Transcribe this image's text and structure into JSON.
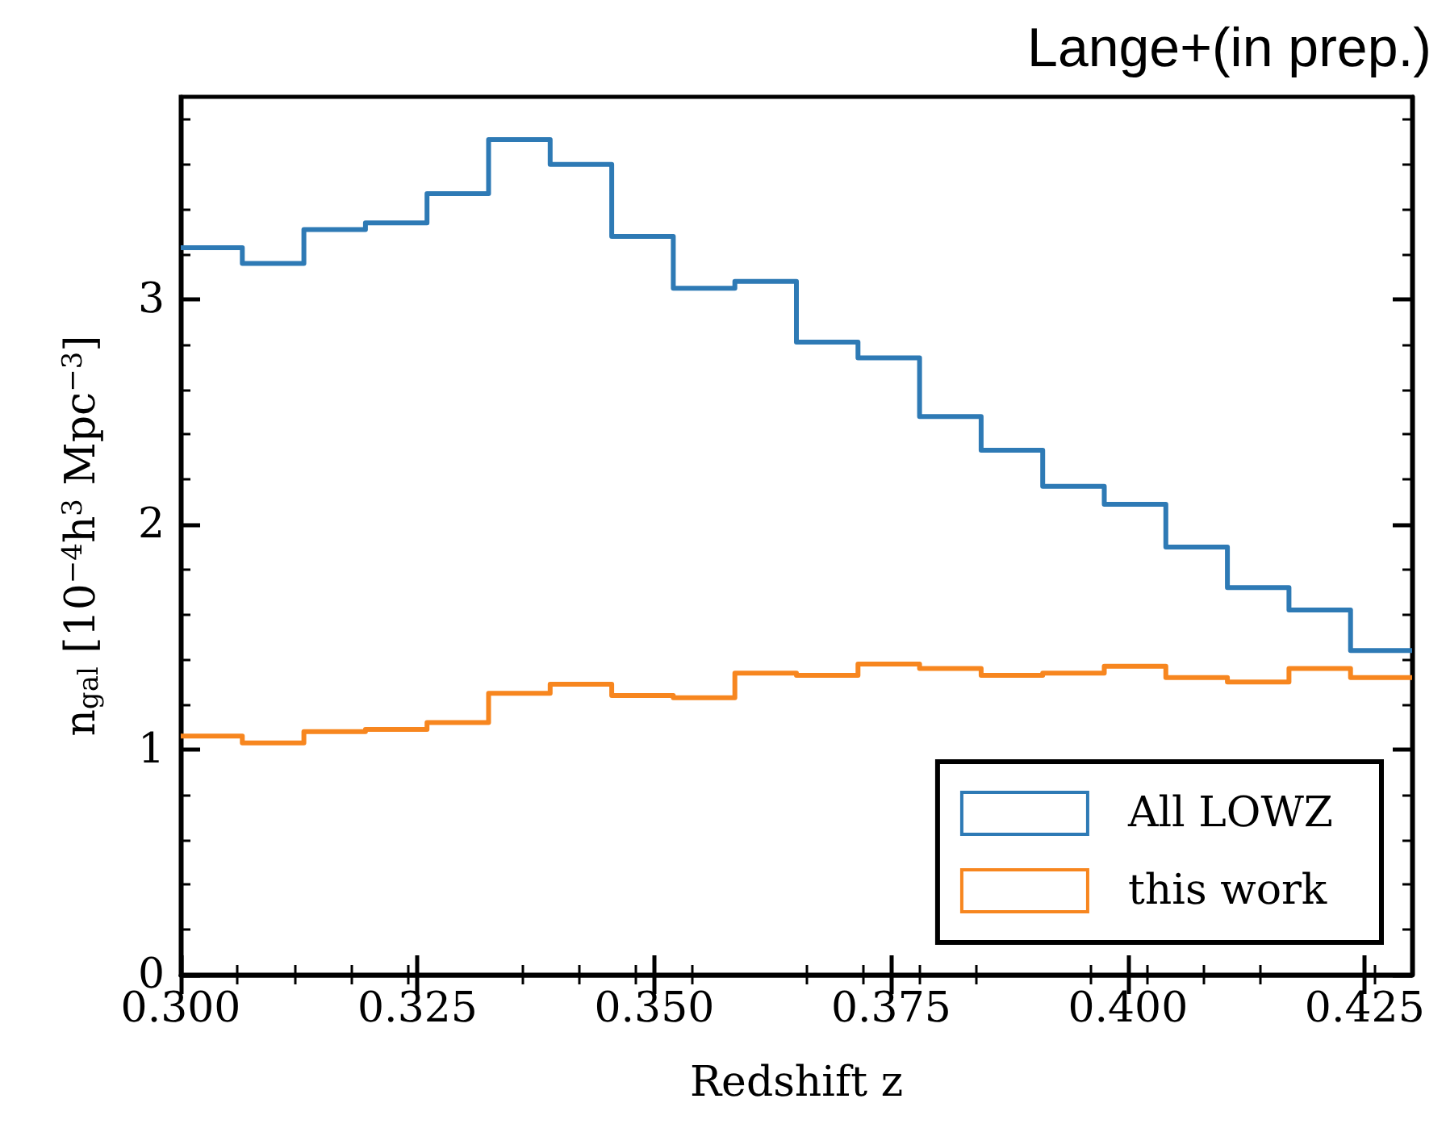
{
  "chart_data": {
    "type": "histogram",
    "title": "Lange+(in prep.)",
    "xlabel": "Redshift z",
    "ylabel": "n$_{gal}$ [10$^{−4}$h$^{3}$ Mpc$^{−3}$]",
    "bins": [
      0.3,
      0.3065,
      0.313,
      0.3195,
      0.326,
      0.3325,
      0.339,
      0.3455,
      0.352,
      0.3585,
      0.365,
      0.3715,
      0.378,
      0.3845,
      0.391,
      0.3975,
      0.404,
      0.4105,
      0.417,
      0.4235,
      0.43
    ],
    "series": [
      {
        "name": "All LOWZ",
        "color": "#2e7ab5",
        "values": [
          3.23,
          3.16,
          3.31,
          3.34,
          3.47,
          3.71,
          3.6,
          3.28,
          3.05,
          3.08,
          2.81,
          2.74,
          2.48,
          2.33,
          2.17,
          2.09,
          1.9,
          1.72,
          1.62,
          1.44
        ]
      },
      {
        "name": "this work",
        "color": "#f7861f",
        "values": [
          1.06,
          1.03,
          1.08,
          1.09,
          1.12,
          1.25,
          1.29,
          1.24,
          1.23,
          1.34,
          1.33,
          1.38,
          1.36,
          1.33,
          1.34,
          1.37,
          1.32,
          1.3,
          1.36,
          1.32
        ]
      }
    ],
    "xlim": [
      0.3,
      0.43
    ],
    "ylim": [
      0,
      3.9
    ],
    "xticks": [
      {
        "value": 0.3,
        "label": "0.300"
      },
      {
        "value": 0.325,
        "label": "0.325"
      },
      {
        "value": 0.35,
        "label": "0.350"
      },
      {
        "value": 0.375,
        "label": "0.375"
      },
      {
        "value": 0.4,
        "label": "0.400"
      },
      {
        "value": 0.425,
        "label": "0.425"
      }
    ],
    "yticks": [
      0,
      1,
      2,
      3
    ],
    "legend": "bottom right",
    "grid": false
  }
}
